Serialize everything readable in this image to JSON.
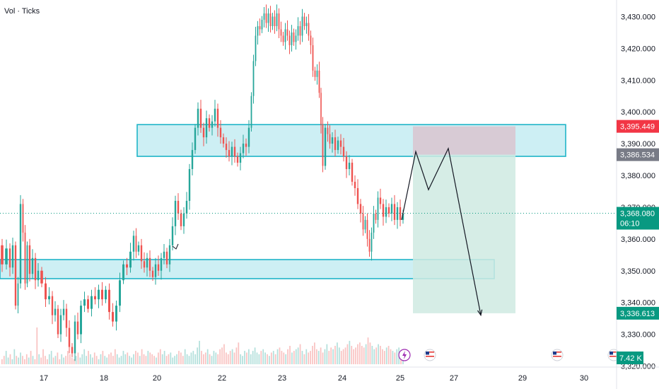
{
  "legend": {
    "indicator": "Vol · Ticks"
  },
  "colors": {
    "up": "#26a69a",
    "down": "#ef5350",
    "zone_fill": "#cdeff4",
    "zone_stroke": "#1fb5c8",
    "stop_fill": "#d9c7d2",
    "target_fill": "#cfeae2",
    "price_tag_red": "#f23645",
    "price_tag_gray": "#787b86",
    "price_tag_green": "#089981",
    "axis_text": "#131722"
  },
  "chart_data": {
    "type": "candlestick",
    "title": "",
    "ylim": [
      3321,
      3433
    ],
    "y_ticks": [
      {
        "value": 3430,
        "label": "3,430.000"
      },
      {
        "value": 3420,
        "label": "3,420.000"
      },
      {
        "value": 3410,
        "label": "3,410.000"
      },
      {
        "value": 3400,
        "label": "3,400.000"
      },
      {
        "value": 3390,
        "label": "3,390.000"
      },
      {
        "value": 3380,
        "label": "3,380.000"
      },
      {
        "value": 3370,
        "label": "3,370.000"
      },
      {
        "value": 3360,
        "label": "3,360.000"
      },
      {
        "value": 3350,
        "label": "3,350.000"
      },
      {
        "value": 3340,
        "label": "3,340.000"
      },
      {
        "value": 3330,
        "label": "3,330.000"
      },
      {
        "value": 3320,
        "label": "3,320.000"
      }
    ],
    "x_ticks": [
      "17",
      "18",
      "20",
      "22",
      "23",
      "24",
      "25",
      "27",
      "29",
      "30"
    ],
    "price_tags": [
      {
        "value": 3395.449,
        "label": "3,395.449",
        "style": "red"
      },
      {
        "value": 3386.534,
        "label": "3,386.534",
        "style": "gray"
      },
      {
        "value": 3368.08,
        "label": "3,368.080",
        "sublabel": "06:10",
        "style": "green"
      },
      {
        "value": 3336.613,
        "label": "3,336.613",
        "style": "green"
      }
    ],
    "volume_tag": {
      "label": "7.42 K"
    },
    "last_price": 3368.08,
    "zones": [
      {
        "name": "resistance-zone",
        "top": 3396,
        "bottom": 3386
      },
      {
        "name": "support-zone",
        "top": 3353.5,
        "bottom": 3347.5
      }
    ],
    "short_position": {
      "entry": 3386.534,
      "stop": 3395.449,
      "target": 3336.613
    },
    "price_path": [
      [
        0,
        3358
      ],
      [
        6,
        3352
      ],
      [
        12,
        3357
      ],
      [
        16,
        3351
      ],
      [
        20,
        3358
      ],
      [
        24,
        3339
      ],
      [
        27,
        3346
      ],
      [
        31,
        3371
      ],
      [
        34,
        3362
      ],
      [
        37,
        3346
      ],
      [
        40,
        3358
      ],
      [
        44,
        3349
      ],
      [
        48,
        3354
      ],
      [
        52,
        3347
      ],
      [
        56,
        3350
      ],
      [
        62,
        3346
      ],
      [
        67,
        3341
      ],
      [
        72,
        3342
      ],
      [
        76,
        3336
      ],
      [
        80,
        3338
      ],
      [
        84,
        3330
      ],
      [
        88,
        3336
      ],
      [
        92,
        3338
      ],
      [
        96,
        3332
      ],
      [
        100,
        3326
      ],
      [
        104,
        3324
      ],
      [
        108,
        3334
      ],
      [
        112,
        3330
      ],
      [
        117,
        3339
      ],
      [
        122,
        3341
      ],
      [
        127,
        3338
      ],
      [
        132,
        3342
      ],
      [
        137,
        3341
      ],
      [
        142,
        3344
      ],
      [
        147,
        3341
      ],
      [
        152,
        3344
      ],
      [
        157,
        3337
      ],
      [
        162,
        3334
      ],
      [
        167,
        3339
      ],
      [
        172,
        3347
      ],
      [
        177,
        3352
      ],
      [
        182,
        3351
      ],
      [
        187,
        3356
      ],
      [
        191,
        3361
      ],
      [
        194,
        3356
      ],
      [
        198,
        3358
      ],
      [
        202,
        3353
      ],
      [
        206,
        3351
      ],
      [
        210,
        3354
      ],
      [
        214,
        3350
      ],
      [
        218,
        3348
      ],
      [
        222,
        3352
      ],
      [
        226,
        3350
      ],
      [
        230,
        3354
      ],
      [
        234,
        3356
      ],
      [
        238,
        3352
      ],
      [
        242,
        3358
      ],
      [
        246,
        3364
      ],
      [
        250,
        3372
      ],
      [
        254,
        3368
      ],
      [
        258,
        3364
      ],
      [
        262,
        3368
      ],
      [
        266,
        3372
      ],
      [
        270,
        3382
      ],
      [
        274,
        3388
      ],
      [
        278,
        3395
      ],
      [
        282,
        3401
      ],
      [
        286,
        3395
      ],
      [
        290,
        3392
      ],
      [
        294,
        3398
      ],
      [
        298,
        3395
      ],
      [
        302,
        3397
      ],
      [
        306,
        3401
      ],
      [
        310,
        3395
      ],
      [
        314,
        3392
      ],
      [
        318,
        3390
      ],
      [
        322,
        3388
      ],
      [
        326,
        3386
      ],
      [
        330,
        3389
      ],
      [
        334,
        3386
      ],
      [
        338,
        3384
      ],
      [
        342,
        3387
      ],
      [
        346,
        3390
      ],
      [
        350,
        3389
      ],
      [
        354,
        3395
      ],
      [
        357,
        3405
      ],
      [
        360,
        3416
      ],
      [
        363,
        3424
      ],
      [
        366,
        3427
      ],
      [
        369,
        3426
      ],
      [
        372,
        3429
      ],
      [
        375,
        3431
      ],
      [
        378,
        3428
      ],
      [
        381,
        3431
      ],
      [
        384,
        3427
      ],
      [
        387,
        3430
      ],
      [
        390,
        3427
      ],
      [
        393,
        3431
      ],
      [
        396,
        3426
      ],
      [
        399,
        3424
      ],
      [
        402,
        3422
      ],
      [
        405,
        3426
      ],
      [
        408,
        3424
      ],
      [
        411,
        3421
      ],
      [
        414,
        3425
      ],
      [
        417,
        3422
      ],
      [
        420,
        3424
      ],
      [
        423,
        3427
      ],
      [
        426,
        3424
      ],
      [
        429,
        3430
      ],
      [
        432,
        3427
      ],
      [
        435,
        3428
      ],
      [
        438,
        3424
      ],
      [
        441,
        3421
      ],
      [
        444,
        3413
      ],
      [
        447,
        3411
      ],
      [
        450,
        3413
      ],
      [
        453,
        3406
      ],
      [
        455,
        3396
      ],
      [
        458,
        3383
      ],
      [
        462,
        3395
      ],
      [
        465,
        3393
      ],
      [
        468,
        3390
      ],
      [
        472,
        3392
      ],
      [
        476,
        3388
      ],
      [
        480,
        3391
      ],
      [
        484,
        3389
      ],
      [
        488,
        3386
      ],
      [
        492,
        3382
      ],
      [
        496,
        3384
      ],
      [
        500,
        3378
      ],
      [
        504,
        3376
      ],
      [
        508,
        3371
      ],
      [
        512,
        3368
      ],
      [
        515,
        3363
      ],
      [
        518,
        3366
      ],
      [
        521,
        3360
      ],
      [
        524,
        3356
      ],
      [
        527,
        3362
      ],
      [
        530,
        3368
      ],
      [
        533,
        3366
      ],
      [
        536,
        3373
      ],
      [
        540,
        3371
      ],
      [
        544,
        3367
      ],
      [
        548,
        3370
      ],
      [
        552,
        3368
      ],
      [
        556,
        3371
      ],
      [
        560,
        3366
      ],
      [
        564,
        3370
      ],
      [
        568,
        3366
      ],
      [
        572,
        3368
      ]
    ],
    "projection_path": [
      [
        568,
        3366
      ],
      [
        588,
        3387.5
      ],
      [
        606,
        3375.5
      ],
      [
        634,
        3388.5
      ],
      [
        680,
        3336
      ]
    ],
    "volume_bars": [
      3,
      5,
      8,
      4,
      6,
      3,
      9,
      5,
      4,
      7,
      5,
      3,
      6,
      4,
      8,
      5,
      3,
      22,
      6,
      4,
      9,
      5,
      3,
      6,
      8,
      4,
      5,
      7,
      3,
      6,
      4,
      5,
      8,
      6,
      4,
      3,
      5,
      7,
      4,
      6,
      9,
      5,
      8,
      6,
      4,
      7,
      5,
      3,
      6,
      8,
      5,
      4,
      6,
      7,
      5,
      9,
      6,
      4,
      5,
      8,
      6,
      7,
      5,
      4,
      6,
      8,
      7,
      5,
      9,
      6,
      5,
      8,
      7,
      6,
      5,
      4,
      7,
      9,
      6,
      8,
      5,
      6,
      7,
      4,
      5,
      6,
      8,
      7,
      5,
      9,
      6,
      5,
      7,
      8,
      6,
      10,
      14,
      8,
      6,
      7,
      9,
      6,
      5,
      8,
      7,
      6,
      9,
      10,
      12,
      7,
      6,
      8,
      9,
      7,
      10,
      13,
      6,
      5,
      8,
      7,
      9,
      6,
      8,
      10,
      7,
      6,
      8,
      9,
      7,
      6,
      5,
      7,
      8,
      6,
      9,
      10,
      8,
      7,
      6,
      9,
      11,
      7,
      8,
      9,
      10,
      12,
      8,
      6,
      9,
      7,
      8,
      11,
      13,
      9,
      8,
      10,
      7,
      9,
      12,
      8,
      10,
      9,
      11,
      13,
      10,
      8,
      9,
      10,
      12,
      14,
      11,
      9,
      10,
      12,
      13,
      11,
      10,
      12,
      16,
      13,
      11,
      9,
      10,
      12,
      11,
      9,
      8,
      10,
      11,
      9,
      8,
      7,
      9,
      10,
      8,
      7
    ],
    "markers": [
      {
        "type": "bolt",
        "x": 572
      },
      {
        "type": "flag-us",
        "x": 608
      },
      {
        "type": "flag-us",
        "x": 788
      },
      {
        "type": "flag-us",
        "x": 868
      }
    ]
  }
}
